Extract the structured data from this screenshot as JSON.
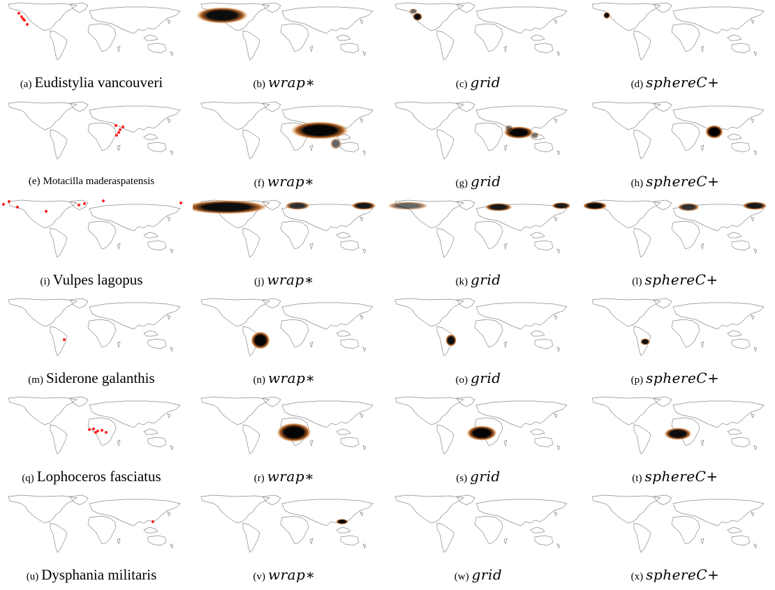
{
  "rows": [
    {
      "species": "Eudistylia vancouveri",
      "labels": [
        "(a)",
        "(b)",
        "(c)",
        "(d)"
      ],
      "small": false,
      "obs": [
        [
          27,
          17
        ],
        [
          31,
          22
        ],
        [
          35,
          27
        ],
        [
          39,
          33
        ],
        [
          33,
          25
        ]
      ],
      "pred": [
        [
          [
            42,
            20,
            38,
            12,
            0.95
          ]
        ],
        [
          [
            44,
            22,
            7,
            6,
            0.95
          ],
          [
            38,
            14,
            6,
            4,
            0.6
          ]
        ],
        [
          [
            33,
            20,
            5,
            5,
            0.95
          ]
        ]
      ]
    },
    {
      "species": "Motacilla maderaspatensis",
      "labels": [
        "(e)",
        "(f)",
        "(g)",
        "(h)"
      ],
      "small": true,
      "obs": [
        [
          166,
          36
        ],
        [
          172,
          42
        ],
        [
          167,
          50
        ],
        [
          176,
          38
        ],
        [
          170,
          46
        ]
      ],
      "pred": [
        [
          [
            182,
            43,
            42,
            13,
            0.98
          ],
          [
            205,
            62,
            8,
            8,
            0.6
          ]
        ],
        [
          [
            189,
            46,
            22,
            9,
            0.98
          ],
          [
            175,
            40,
            6,
            5,
            0.5
          ],
          [
            212,
            50,
            6,
            5,
            0.5
          ]
        ],
        [
          [
            187,
            45,
            13,
            10,
            1.0
          ]
        ]
      ]
    },
    {
      "species": "Vulpes lagopus",
      "labels": [
        "(i)",
        "(j)",
        "(k)",
        "(l)"
      ],
      "small": false,
      "obs": [
        [
          5,
          8
        ],
        [
          13,
          4
        ],
        [
          25,
          12
        ],
        [
          66,
          18
        ],
        [
          113,
          9
        ],
        [
          121,
          7
        ],
        [
          148,
          3
        ],
        [
          259,
          6
        ]
      ],
      "pred": [
        [
          [
            48,
            12,
            60,
            10,
            0.95
          ],
          [
            150,
            10,
            18,
            6,
            0.8
          ],
          [
            245,
            10,
            18,
            6,
            0.9
          ]
        ],
        [
          [
            30,
            10,
            30,
            6,
            0.6
          ],
          [
            160,
            12,
            20,
            6,
            0.9
          ],
          [
            250,
            10,
            14,
            5,
            0.9
          ]
        ],
        [
          [
            16,
            10,
            18,
            6,
            0.95
          ],
          [
            150,
            12,
            16,
            6,
            0.8
          ],
          [
            245,
            10,
            18,
            6,
            0.9
          ]
        ]
      ]
    },
    {
      "species": "Siderone galanthis",
      "labels": [
        "(m)",
        "(n)",
        "(o)",
        "(p)"
      ],
      "small": false,
      "obs": [
        [
          92,
          61
        ]
      ],
      "pred": [
        [
          [
            97,
            62,
            14,
            13,
            0.98
          ]
        ],
        [
          [
            92,
            62,
            8,
            9,
            0.95
          ]
        ],
        [
          [
            88,
            64,
            7,
            5,
            0.95
          ]
        ]
      ]
    },
    {
      "species": "Lophoceros fasciatus",
      "labels": [
        "(q)",
        "(r)",
        "(s)",
        "(t)"
      ],
      "small": false,
      "obs": [
        [
          128,
          49
        ],
        [
          134,
          48
        ],
        [
          140,
          51
        ],
        [
          146,
          50
        ],
        [
          137,
          53
        ],
        [
          152,
          53
        ]
      ],
      "pred": [
        [
          [
            145,
            53,
            25,
            14,
            0.98
          ]
        ],
        [
          [
            136,
            54,
            22,
            11,
            0.98
          ]
        ],
        [
          [
            135,
            55,
            20,
            9,
            0.95
          ]
        ]
      ]
    },
    {
      "species": "Dysphania militaris",
      "labels": [
        "(u)",
        "(v)",
        "(w)",
        "(x)"
      ],
      "small": false,
      "obs": [
        [
          219,
          40
        ]
      ],
      "pred": [
        [
          [
            214,
            40,
            9,
            4,
            0.98
          ]
        ],
        [],
        []
      ]
    }
  ],
  "methods": [
    "wrap∗",
    "grid",
    "sphereC+"
  ],
  "colors": {
    "observation": "#ff2020",
    "high": "#000000",
    "mid": "#a84b0a",
    "low": "#f5c97a",
    "coast": "#8a8a8a"
  }
}
